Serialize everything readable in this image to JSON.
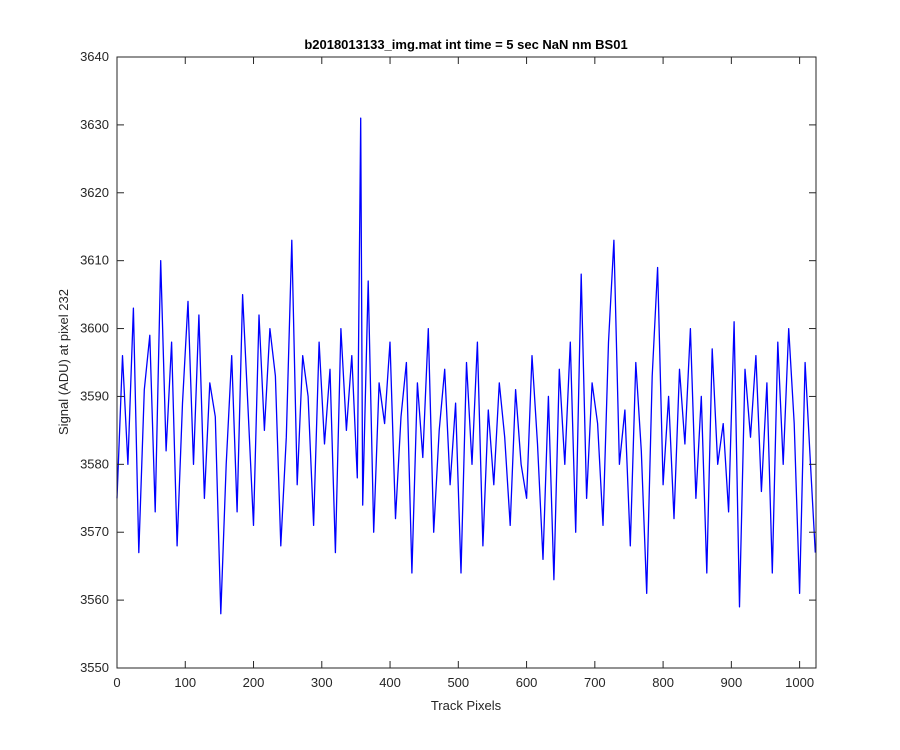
{
  "chart_data": {
    "type": "line",
    "title": "b2018013133_img.mat int time = 5 sec  NaN nm BS01",
    "xlabel": "Track Pixels",
    "ylabel": "Signal (ADU) at pixel 232",
    "xlim": [
      0,
      1024
    ],
    "ylim": [
      3550,
      3640
    ],
    "xticks": [
      0,
      100,
      200,
      300,
      400,
      500,
      600,
      700,
      800,
      900,
      1000
    ],
    "yticks": [
      3550,
      3560,
      3570,
      3580,
      3590,
      3600,
      3610,
      3620,
      3630,
      3640
    ],
    "xtick_labels": [
      "0",
      "100",
      "200",
      "300",
      "400",
      "500",
      "600",
      "700",
      "800",
      "900",
      "1000"
    ],
    "ytick_labels": [
      "3550",
      "3560",
      "3570",
      "3580",
      "3590",
      "3600",
      "3610",
      "3620",
      "3630",
      "3640"
    ],
    "grid": false,
    "colors": {
      "line": "#0000ff",
      "axes": "#262626",
      "background": "#ffffff"
    },
    "series": [
      {
        "x": [
          0,
          8,
          16,
          24,
          32,
          40,
          48,
          56,
          64,
          72,
          80,
          88,
          96,
          104,
          112,
          120,
          128,
          136,
          144,
          152,
          160,
          168,
          176,
          184,
          192,
          200,
          208,
          216,
          224,
          232,
          240,
          248,
          256,
          264,
          272,
          280,
          288,
          296,
          304,
          312,
          320,
          328,
          336,
          344,
          352,
          357,
          360,
          368,
          376,
          384,
          392,
          400,
          408,
          416,
          424,
          432,
          440,
          448,
          456,
          464,
          472,
          480,
          488,
          496,
          504,
          512,
          520,
          528,
          536,
          544,
          552,
          560,
          568,
          576,
          584,
          592,
          600,
          608,
          616,
          624,
          632,
          640,
          648,
          656,
          664,
          672,
          680,
          688,
          696,
          704,
          712,
          720,
          728,
          736,
          744,
          752,
          760,
          768,
          776,
          784,
          792,
          800,
          808,
          816,
          824,
          832,
          840,
          848,
          856,
          864,
          872,
          880,
          888,
          896,
          904,
          912,
          920,
          928,
          936,
          944,
          952,
          960,
          968,
          976,
          984,
          992,
          1000,
          1008,
          1016,
          1023
        ],
        "y": [
          3575,
          3596,
          3580,
          3603,
          3567,
          3591,
          3599,
          3573,
          3610,
          3582,
          3598,
          3568,
          3589,
          3604,
          3580,
          3602,
          3575,
          3592,
          3587,
          3558,
          3580,
          3596,
          3573,
          3605,
          3588,
          3571,
          3602,
          3585,
          3600,
          3593,
          3568,
          3584,
          3613,
          3577,
          3596,
          3590,
          3571,
          3598,
          3583,
          3594,
          3567,
          3600,
          3585,
          3596,
          3578,
          3631,
          3574,
          3607,
          3570,
          3592,
          3586,
          3598,
          3572,
          3587,
          3595,
          3564,
          3592,
          3581,
          3600,
          3570,
          3585,
          3594,
          3577,
          3589,
          3564,
          3595,
          3580,
          3598,
          3568,
          3588,
          3577,
          3592,
          3584,
          3571,
          3591,
          3580,
          3575,
          3596,
          3583,
          3566,
          3590,
          3563,
          3594,
          3580,
          3598,
          3570,
          3608,
          3575,
          3592,
          3586,
          3571,
          3598,
          3613,
          3580,
          3588,
          3568,
          3595,
          3582,
          3561,
          3593,
          3609,
          3577,
          3590,
          3572,
          3594,
          3583,
          3600,
          3575,
          3590,
          3564,
          3597,
          3580,
          3586,
          3573,
          3601,
          3559,
          3594,
          3584,
          3596,
          3576,
          3592,
          3564,
          3598,
          3580,
          3600,
          3586,
          3561,
          3595,
          3580,
          3567
        ]
      }
    ]
  }
}
